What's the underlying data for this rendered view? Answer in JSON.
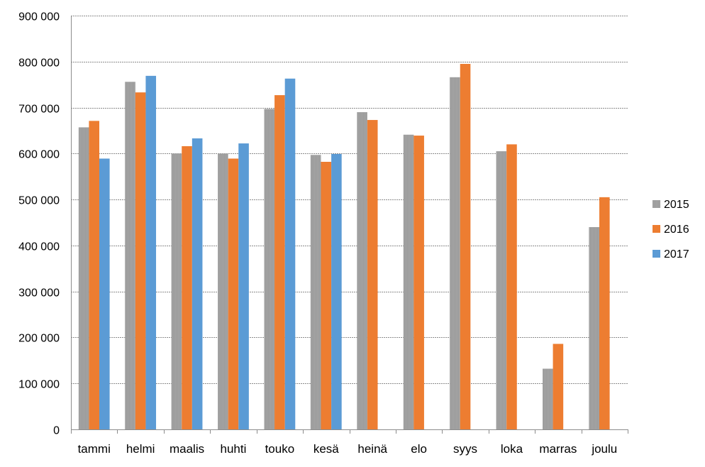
{
  "chart_data": {
    "type": "bar",
    "categories": [
      "tammi",
      "helmi",
      "maalis",
      "huhti",
      "touko",
      "kesä",
      "heinä",
      "elo",
      "syys",
      "loka",
      "marras",
      "joulu"
    ],
    "series": [
      {
        "name": "2015",
        "color": "#a5a5a5",
        "values": [
          657000,
          756000,
          600000,
          600000,
          697000,
          597000,
          690000,
          641000,
          766000,
          605000,
          132000,
          440000
        ]
      },
      {
        "name": "2016",
        "color": "#ed7d31",
        "values": [
          671000,
          733000,
          616000,
          589000,
          727000,
          582000,
          673000,
          639000,
          795000,
          620000,
          186000,
          505000
        ]
      },
      {
        "name": "2017",
        "color": "#5b9bd5",
        "values": [
          589000,
          769000,
          633000,
          622000,
          763000,
          599000,
          null,
          null,
          null,
          null,
          null,
          null
        ]
      }
    ],
    "yticks": [
      "0",
      "100 000",
      "200 000",
      "300 000",
      "400 000",
      "500 000",
      "600 000",
      "700 000",
      "800 000",
      "900 000"
    ],
    "ylim": [
      0,
      900000
    ],
    "grid": true,
    "legend_position": "right",
    "title": "",
    "xlabel": "",
    "ylabel": ""
  }
}
